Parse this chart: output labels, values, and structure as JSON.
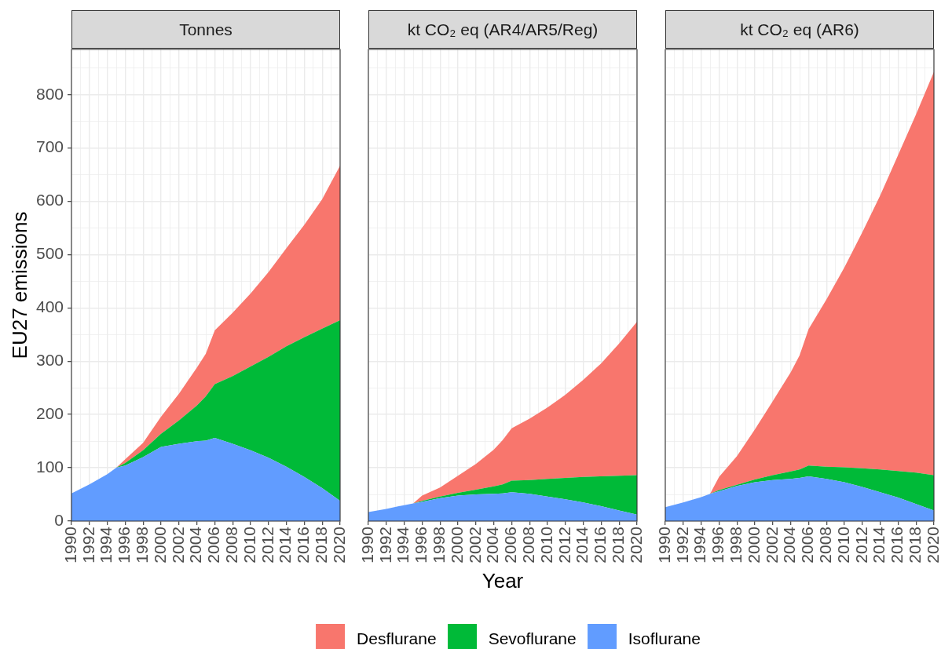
{
  "chart_data": [
    {
      "type": "area",
      "title": "Tonnes",
      "ylabel": "EU27 emissions",
      "stacked": true,
      "grid": true,
      "x": [
        1990,
        1992,
        1994,
        1995,
        1996,
        1998,
        2000,
        2002,
        2004,
        2005,
        2006,
        2008,
        2010,
        2012,
        2014,
        2016,
        2018,
        2020
      ],
      "xlim": [
        1990,
        2020
      ],
      "xticks": [
        1990,
        {
          "value": 1991,
          "label": null
        },
        1992,
        {
          "value": 1993,
          "label": null
        },
        1994,
        {
          "value": 1995,
          "label": null
        },
        1996,
        {
          "value": 1997,
          "label": null
        },
        1998,
        {
          "value": 1999,
          "label": null
        },
        2000,
        {
          "value": 2001,
          "label": null
        },
        2002,
        {
          "value": 2003,
          "label": null
        },
        2004,
        {
          "value": 2005,
          "label": null
        },
        2006,
        {
          "value": 2007,
          "label": null
        },
        2008,
        {
          "value": 2009,
          "label": null
        },
        2010,
        {
          "value": 2011,
          "label": null
        },
        2012,
        {
          "value": 2013,
          "label": null
        },
        2014,
        {
          "value": 2015,
          "label": null
        },
        2016,
        {
          "value": 2017,
          "label": null
        },
        2018,
        {
          "value": 2019,
          "label": null
        },
        2020
      ],
      "ylim": [
        0,
        885
      ],
      "yticks": [
        0,
        100,
        {
          "value": 150,
          "label": null
        },
        200,
        {
          "value": 250,
          "label": null
        },
        300,
        {
          "value": 350,
          "label": null
        },
        400,
        {
          "value": 450,
          "label": null
        },
        500,
        {
          "value": 550,
          "label": null
        },
        600,
        {
          "value": 650,
          "label": null
        },
        700,
        {
          "value": 750,
          "label": null
        },
        800,
        {
          "value": 850,
          "label": null
        }
      ],
      "series": [
        {
          "color": "#619cff",
          "values": [
            52,
            69,
            88,
            100,
            104,
            120,
            139,
            145,
            150,
            151,
            156,
            145,
            133,
            119,
            102,
            83,
            62,
            38
          ]
        },
        {
          "color": "#00ba38",
          "values": [
            0,
            0,
            0,
            0,
            5,
            13,
            25,
            44,
            67,
            83,
            101,
            127,
            157,
            189,
            226,
            262,
            299,
            339
          ]
        },
        {
          "color": "#f8766d",
          "values": [
            0,
            0,
            0,
            0,
            7,
            14,
            32,
            50,
            71,
            80,
            101,
            119,
            137,
            159,
            184,
            211,
            243,
            290
          ]
        }
      ]
    },
    {
      "type": "area",
      "title": "kt CO₂ eq (AR4/AR5/Reg)",
      "xlabel": "Year",
      "stacked": true,
      "grid": true,
      "legend": "bottom",
      "tick_labels": "x",
      "x": [
        1990,
        1992,
        1994,
        1995,
        1996,
        1998,
        2000,
        2002,
        2004,
        2005,
        2006,
        2008,
        2010,
        2012,
        2014,
        2016,
        2018,
        2020
      ],
      "xlim": [
        1990,
        2020
      ],
      "xticks": [
        1990,
        {
          "value": 1991,
          "label": null
        },
        1992,
        {
          "value": 1993,
          "label": null
        },
        1994,
        {
          "value": 1995,
          "label": null
        },
        1996,
        {
          "value": 1997,
          "label": null
        },
        1998,
        {
          "value": 1999,
          "label": null
        },
        2000,
        {
          "value": 2001,
          "label": null
        },
        2002,
        {
          "value": 2003,
          "label": null
        },
        2004,
        {
          "value": 2005,
          "label": null
        },
        2006,
        {
          "value": 2007,
          "label": null
        },
        2008,
        {
          "value": 2009,
          "label": null
        },
        2010,
        {
          "value": 2011,
          "label": null
        },
        2012,
        {
          "value": 2013,
          "label": null
        },
        2014,
        {
          "value": 2015,
          "label": null
        },
        2016,
        {
          "value": 2017,
          "label": null
        },
        2018,
        {
          "value": 2019,
          "label": null
        },
        2020
      ],
      "ylim": [
        0,
        885
      ],
      "yticks": [
        0,
        {
          "value": 50,
          "label": null
        },
        100,
        {
          "value": 150,
          "label": null
        },
        200,
        {
          "value": 250,
          "label": null
        },
        300,
        {
          "value": 350,
          "label": null
        },
        400,
        {
          "value": 450,
          "label": null
        },
        500,
        {
          "value": 550,
          "label": null
        },
        600,
        {
          "value": 650,
          "label": null
        },
        700,
        {
          "value": 750,
          "label": null
        },
        800,
        {
          "value": 850,
          "label": null
        }
      ],
      "series": [
        {
          "name": "Isoflurane",
          "color": "#619cff",
          "values": [
            17,
            23,
            30,
            33,
            36,
            43,
            48,
            50,
            51,
            52,
            54,
            51,
            46,
            41,
            35,
            28,
            20,
            12
          ]
        },
        {
          "name": "Sevoflurane",
          "color": "#00ba38",
          "values": [
            0,
            0,
            0,
            0,
            2,
            3,
            5,
            9,
            14,
            17,
            22,
            26,
            33,
            40,
            48,
            56,
            65,
            74
          ]
        },
        {
          "name": "Desflurane",
          "color": "#f8766d",
          "values": [
            0,
            0,
            0,
            0,
            10,
            17,
            32,
            48,
            69,
            83,
            98,
            115,
            134,
            156,
            182,
            212,
            248,
            288
          ]
        }
      ]
    },
    {
      "type": "area",
      "title": "kt CO₂ eq (AR6)",
      "stacked": true,
      "grid": true,
      "tick_labels": "x",
      "x": [
        1990,
        1992,
        1994,
        1995,
        1996,
        1998,
        2000,
        2002,
        2004,
        2005,
        2006,
        2008,
        2010,
        2012,
        2014,
        2016,
        2018,
        2020
      ],
      "xlim": [
        1990,
        2020
      ],
      "xticks": [
        1990,
        {
          "value": 1991,
          "label": null
        },
        1992,
        {
          "value": 1993,
          "label": null
        },
        1994,
        {
          "value": 1995,
          "label": null
        },
        1996,
        {
          "value": 1997,
          "label": null
        },
        1998,
        {
          "value": 1999,
          "label": null
        },
        2000,
        {
          "value": 2001,
          "label": null
        },
        2002,
        {
          "value": 2003,
          "label": null
        },
        2004,
        {
          "value": 2005,
          "label": null
        },
        2006,
        {
          "value": 2007,
          "label": null
        },
        2008,
        {
          "value": 2009,
          "label": null
        },
        2010,
        {
          "value": 2011,
          "label": null
        },
        2012,
        {
          "value": 2013,
          "label": null
        },
        2014,
        {
          "value": 2015,
          "label": null
        },
        2016,
        {
          "value": 2017,
          "label": null
        },
        2018,
        {
          "value": 2019,
          "label": null
        },
        2020
      ],
      "ylim": [
        0,
        885
      ],
      "yticks": [
        0,
        {
          "value": 50,
          "label": null
        },
        100,
        {
          "value": 150,
          "label": null
        },
        200,
        {
          "value": 250,
          "label": null
        },
        300,
        {
          "value": 350,
          "label": null
        },
        400,
        {
          "value": 450,
          "label": null
        },
        500,
        {
          "value": 550,
          "label": null
        },
        600,
        {
          "value": 650,
          "label": null
        },
        700,
        {
          "value": 750,
          "label": null
        },
        800,
        {
          "value": 850,
          "label": null
        }
      ],
      "series": [
        {
          "color": "#619cff",
          "values": [
            26,
            35,
            45,
            51,
            56,
            66,
            73,
            77,
            79,
            81,
            84,
            79,
            73,
            64,
            54,
            44,
            32,
            20
          ]
        },
        {
          "color": "#00ba38",
          "values": [
            0,
            0,
            0,
            0,
            2,
            2,
            5,
            9,
            14,
            16,
            20,
            23,
            28,
            35,
            43,
            50,
            59,
            66
          ]
        },
        {
          "color": "#f8766d",
          "values": [
            0,
            0,
            0,
            0,
            25,
            54,
            94,
            139,
            186,
            214,
            256,
            314,
            375,
            443,
            514,
            593,
            672,
            757
          ]
        }
      ]
    }
  ]
}
